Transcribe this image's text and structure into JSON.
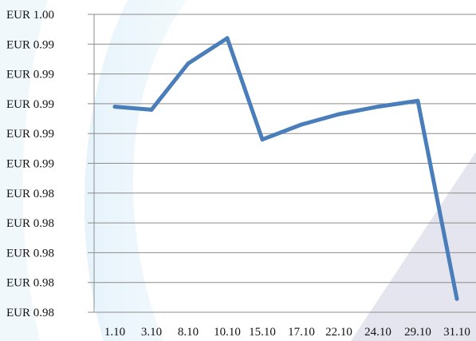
{
  "chart_data": {
    "type": "line",
    "title": "",
    "xlabel": "",
    "ylabel": "",
    "categories": [
      "1.10",
      "3.10",
      "8.10",
      "10.10",
      "15.10",
      "17.10",
      "22.10",
      "24.10",
      "29.10",
      "31.10"
    ],
    "y_tick_labels": [
      "EUR 1.00",
      "EUR 0.99",
      "EUR 0.99",
      "EUR 0.99",
      "EUR 0.99",
      "EUR 0.99",
      "EUR 0.98",
      "EUR 0.98",
      "EUR 0.98",
      "EUR 0.98",
      "EUR 0.98"
    ],
    "ylim": [
      0.98,
      1.0
    ],
    "grid": true,
    "legend": "none",
    "series": [
      {
        "values": [
          0.9938,
          0.9936,
          0.9967,
          0.9984,
          0.9916,
          0.9926,
          0.9933,
          0.9938,
          0.9942,
          0.9809
        ],
        "color": "#4a7ebb"
      }
    ],
    "gridline_color": "#8c8c8c",
    "axis_color": "#8c8c8c"
  }
}
